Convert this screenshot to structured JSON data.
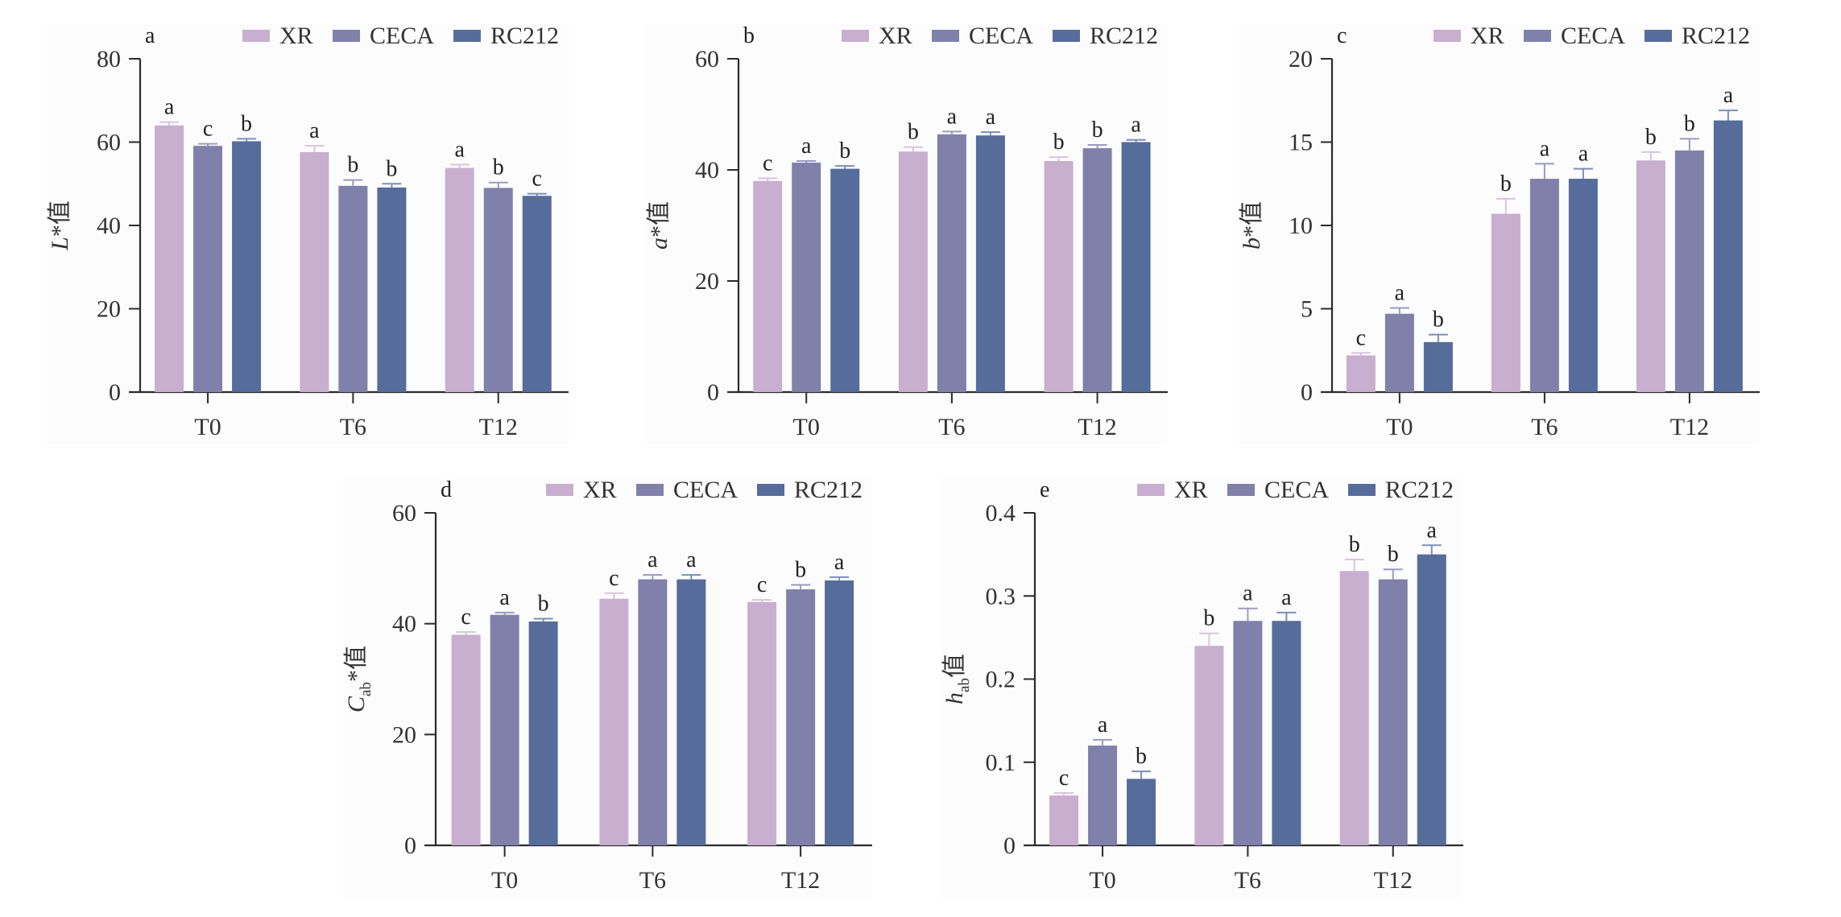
{
  "figure": {
    "colors": {
      "XR": "#c8aecf",
      "CECA": "#8180aa",
      "RC212": "#566c9b"
    },
    "error_colors": {
      "XR": "#d8c4dd",
      "CECA": "#9b9ac0",
      "RC212": "#7b8fbb"
    }
  },
  "chart_data": [
    {
      "panel": "a",
      "type": "bar",
      "title": "",
      "ylabel": {
        "var": "L",
        "sub": "",
        "suffix": "*值"
      },
      "xlabel": "",
      "categories": [
        "T0",
        "T6",
        "T12"
      ],
      "ylim": [
        0,
        80
      ],
      "yticks": [
        0,
        20,
        40,
        60,
        80
      ],
      "legend": {
        "entries": [
          "XR",
          "CECA",
          "RC212"
        ],
        "position": "top-right"
      },
      "series": [
        {
          "name": "XR",
          "values": [
            64.0,
            57.6,
            53.8
          ],
          "errors": [
            0.8,
            1.5,
            0.8
          ],
          "letters": [
            "a",
            "a",
            "a"
          ]
        },
        {
          "name": "CECA",
          "values": [
            59.1,
            49.5,
            49.0
          ],
          "errors": [
            0.5,
            1.4,
            1.3
          ],
          "letters": [
            "c",
            "b",
            "b"
          ]
        },
        {
          "name": "RC212",
          "values": [
            60.2,
            49.1,
            47.1
          ],
          "errors": [
            0.6,
            0.9,
            0.5
          ],
          "letters": [
            "b",
            "b",
            "c"
          ]
        }
      ]
    },
    {
      "panel": "b",
      "type": "bar",
      "title": "",
      "ylabel": {
        "var": "a",
        "sub": "",
        "suffix": "*值"
      },
      "xlabel": "",
      "categories": [
        "T0",
        "T6",
        "T12"
      ],
      "ylim": [
        0,
        60
      ],
      "yticks": [
        0,
        20,
        40,
        60
      ],
      "legend": {
        "entries": [
          "XR",
          "CECA",
          "RC212"
        ],
        "position": "top-right"
      },
      "series": [
        {
          "name": "XR",
          "values": [
            38.0,
            43.3,
            41.6
          ],
          "errors": [
            0.5,
            0.8,
            0.7
          ],
          "letters": [
            "c",
            "b",
            "b"
          ]
        },
        {
          "name": "CECA",
          "values": [
            41.3,
            46.4,
            43.9
          ],
          "errors": [
            0.3,
            0.5,
            0.6
          ],
          "letters": [
            "a",
            "a",
            "b"
          ]
        },
        {
          "name": "RC212",
          "values": [
            40.2,
            46.2,
            45.0
          ],
          "errors": [
            0.5,
            0.6,
            0.4
          ],
          "letters": [
            "b",
            "a",
            "a"
          ]
        }
      ]
    },
    {
      "panel": "c",
      "type": "bar",
      "title": "",
      "ylabel": {
        "var": "b",
        "sub": "",
        "suffix": "*值"
      },
      "xlabel": "",
      "categories": [
        "T0",
        "T6",
        "T12"
      ],
      "ylim": [
        0,
        20
      ],
      "yticks": [
        0,
        5,
        10,
        15,
        20
      ],
      "legend": {
        "entries": [
          "XR",
          "CECA",
          "RC212"
        ],
        "position": "top-right"
      },
      "series": [
        {
          "name": "XR",
          "values": [
            2.2,
            10.7,
            13.9
          ],
          "errors": [
            0.15,
            0.9,
            0.5
          ],
          "letters": [
            "c",
            "b",
            "b"
          ]
        },
        {
          "name": "CECA",
          "values": [
            4.7,
            12.8,
            14.5
          ],
          "errors": [
            0.35,
            0.9,
            0.7
          ],
          "letters": [
            "a",
            "a",
            "b"
          ]
        },
        {
          "name": "RC212",
          "values": [
            3.0,
            12.8,
            16.3
          ],
          "errors": [
            0.45,
            0.6,
            0.6
          ],
          "letters": [
            "b",
            "a",
            "a"
          ]
        }
      ]
    },
    {
      "panel": "d",
      "type": "bar",
      "title": "",
      "ylabel": {
        "var": "C",
        "sub": "ab",
        "suffix": "*值"
      },
      "xlabel": "",
      "categories": [
        "T0",
        "T6",
        "T12"
      ],
      "ylim": [
        0,
        60
      ],
      "yticks": [
        0,
        20,
        40,
        60
      ],
      "legend": {
        "entries": [
          "XR",
          "CECA",
          "RC212"
        ],
        "position": "top-right"
      },
      "series": [
        {
          "name": "XR",
          "values": [
            38.0,
            44.5,
            43.9
          ],
          "errors": [
            0.5,
            1.0,
            0.4
          ],
          "letters": [
            "c",
            "c",
            "c"
          ]
        },
        {
          "name": "CECA",
          "values": [
            41.6,
            48.0,
            46.2
          ],
          "errors": [
            0.4,
            0.8,
            0.8
          ],
          "letters": [
            "a",
            "a",
            "b"
          ]
        },
        {
          "name": "RC212",
          "values": [
            40.4,
            48.0,
            47.8
          ],
          "errors": [
            0.5,
            0.8,
            0.6
          ],
          "letters": [
            "b",
            "a",
            "a"
          ]
        }
      ]
    },
    {
      "panel": "e",
      "type": "bar",
      "title": "",
      "ylabel": {
        "var": "h",
        "sub": "ab",
        "suffix": "值"
      },
      "xlabel": "",
      "categories": [
        "T0",
        "T6",
        "T12"
      ],
      "ylim": [
        0,
        0.4
      ],
      "yticks": [
        0,
        0.1,
        0.2,
        0.3,
        0.4
      ],
      "legend": {
        "entries": [
          "XR",
          "CECA",
          "RC212"
        ],
        "position": "top-right"
      },
      "series": [
        {
          "name": "XR",
          "values": [
            0.06,
            0.24,
            0.33
          ],
          "errors": [
            0.003,
            0.015,
            0.014
          ],
          "letters": [
            "c",
            "b",
            "b"
          ]
        },
        {
          "name": "CECA",
          "values": [
            0.12,
            0.27,
            0.32
          ],
          "errors": [
            0.007,
            0.015,
            0.012
          ],
          "letters": [
            "a",
            "a",
            "b"
          ]
        },
        {
          "name": "RC212",
          "values": [
            0.08,
            0.27,
            0.35
          ],
          "errors": [
            0.009,
            0.01,
            0.011
          ],
          "letters": [
            "b",
            "a",
            "a"
          ]
        }
      ]
    }
  ]
}
